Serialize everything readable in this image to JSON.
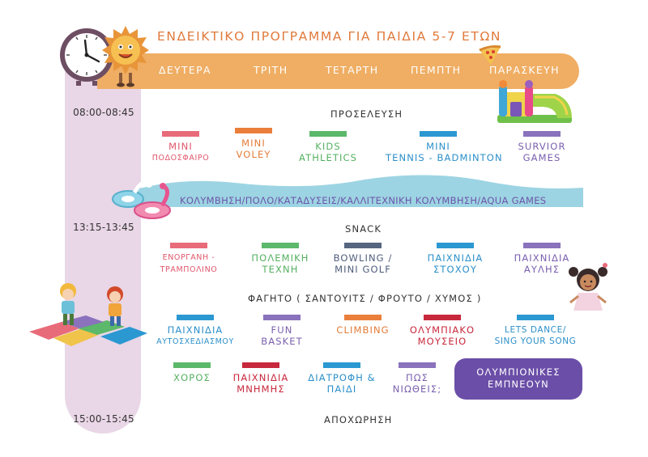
{
  "title": "ΕΝΔΕΙΚΤΙΚΟ ΠΡΟΓΡΑΜΜΑ ΓΙΑ ΠΑΙΔΙΑ 5-7 ΕΤΩΝ",
  "days": [
    "ΔΕΥΤΕΡΑ",
    "ΤΡΙΤΗ",
    "ΤΕΤΑΡΤΗ",
    "ΠΕΜΠΤΗ",
    "ΠΑΡΑΣΚΕΥΗ"
  ],
  "times": {
    "start": "08:00-08:45",
    "snack": "13:15-13:45",
    "end": "15:00-15:45"
  },
  "sections": {
    "arrival": "ΠΡΟΣΕΛΕΥΣΗ",
    "snack": "SNACK",
    "lunch": "ΦΑΓΗΤΟ ( ΣΑΝΤΟΥΙΤΣ / ΦΡΟΥΤΟ / ΧΥΜΟΣ )",
    "departure": "ΑΠΟΧΩΡΗΣΗ"
  },
  "swimming": "ΚΟΛΥΜΒΗΣΗ/ΠΟΛΟ/ΚΑΤΑΔΥΣΕΙΣ/ΚΑΛΛΙΤΕΧΝΙΚΗ ΚΟΛΥΜΒΗΣΗ/AQUA GAMES",
  "row1": [
    {
      "l1": "MINI",
      "l2": "ΠΟΔΟΣΦΑΙΡΟ"
    },
    {
      "l1": "MINI",
      "l2": "VOLEY"
    },
    {
      "l1": "KIDS",
      "l2": "ATHLETICS"
    },
    {
      "l1": "MINI",
      "l2": "TENNIS - BADMINTON"
    },
    {
      "l1": "SURVIOR",
      "l2": "GAMES"
    }
  ],
  "row2": [
    {
      "l1": "ΕΝΟΡΓΑΝΗ -",
      "l2": "ΤΡΑΜΠΟΛΙΝΟ"
    },
    {
      "l1": "ΠΟΛΕΜΙΚΗ",
      "l2": "ΤΕΧΝΗ"
    },
    {
      "l1": "BOWLING /",
      "l2": "MINI GOLF"
    },
    {
      "l1": "ΠΑΙΧΝΙΔΙΑ",
      "l2": "ΣΤΟΧΟΥ"
    },
    {
      "l1": "ΠΑΙΧΝΙΔΙΑ",
      "l2": "ΑΥΛΗΣ"
    }
  ],
  "row3": [
    {
      "l1": "ΠΑΙΧΝΙΔΙΑ",
      "l2": "ΑΥΤΟΣΧΕΔΙΑΣΜΟΥ"
    },
    {
      "l1": "FUN",
      "l2": "BASKET"
    },
    {
      "l1": "CLIMBING",
      "l2": ""
    },
    {
      "l1": "ΟΛΥΜΠΙΑΚΟ",
      "l2": "ΜΟΥΣΕΙΟ"
    },
    {
      "l1": "LETS DANCE/",
      "l2": "SING YOUR SONG"
    }
  ],
  "row4": [
    {
      "l1": "ΧΟΡΟΣ",
      "l2": ""
    },
    {
      "l1": "ΠΑΙΧΝΙΔΙΑ",
      "l2": "ΜΝΗΜΗΣ"
    },
    {
      "l1": "ΔΙΑΤΡΟΦΗ &",
      "l2": "ΠΑΙΔΙ"
    },
    {
      "l1": "ΠΩΣ",
      "l2": "ΝΙΩΘΕΙΣ;"
    }
  ],
  "olympians": {
    "l1": "ΟΛΥΜΠΙΟΝΙΚΕΣ",
    "l2": "ΕΜΠΝΕΟΥΝ"
  },
  "icons": [
    "clock-icon",
    "sun-mascot-icon",
    "pizza-icon",
    "bouncy-castle-icon",
    "flamingo-float-icon",
    "swan-float-icon",
    "kids-hopscotch-icon",
    "girl-icon"
  ],
  "colors": {
    "orange": "#efae64",
    "lilac": "#e9d6e6",
    "wave": "#9dd4e3",
    "purple": "#6b4ea8"
  }
}
